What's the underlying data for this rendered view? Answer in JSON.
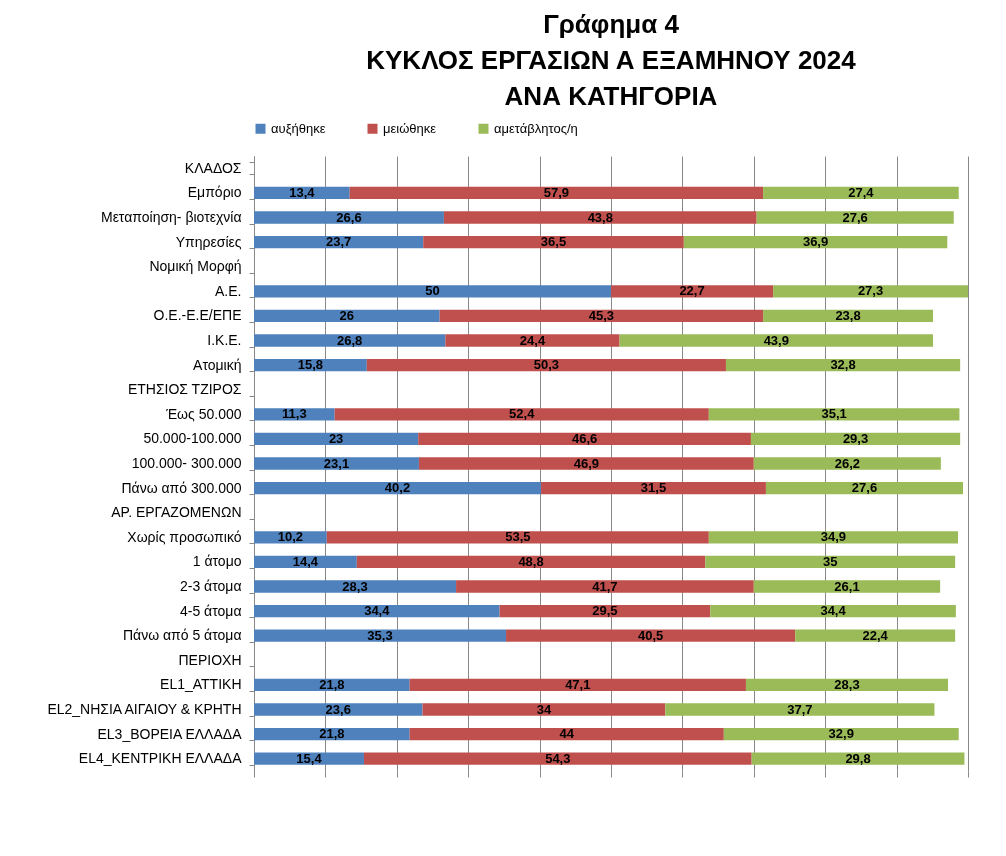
{
  "chart_data": {
    "type": "bar",
    "orientation": "horizontal",
    "stacked": true,
    "title": [
      "Γράφημα 4",
      "ΚΥΚΛΟΣ ΕΡΓΑΣΙΩΝ Α ΕΞΑΜΗΝΟΥ 2024",
      "ΑΝΑ ΚΑΤΗΓΟΡΙΑ"
    ],
    "categories": [
      "ΚΛΑΔΟΣ",
      "Εμπόριο",
      "Μεταποίηση- βιοτεχνία",
      "Υπηρεσίες",
      "Νομική Μορφή",
      "Α.Ε.",
      "Ο.Ε.-Ε.Ε/ΕΠΕ",
      "Ι.Κ.Ε.",
      "Ατομική",
      "ΕΤΗΣΙΟΣ ΤΖΙΡΟΣ",
      "Έως 50.000",
      "50.000-100.000",
      "100.000- 300.000",
      "Πάνω από 300.000",
      "ΑΡ. ΕΡΓΑΖΟΜΕΝΩΝ",
      "Χωρίς προσωπικό",
      "1 άτομο",
      "2-3 άτομα",
      "4-5 άτομα",
      "Πάνω από 5 άτομα",
      "ΠΕΡΙΟΧΗ",
      "EL1_ΑΤΤΙΚΗ",
      "EL2_ΝΗΣΙΑ ΑΙΓΑΙΟΥ & ΚΡΗΤΗ",
      "EL3_ΒΟΡΕΙΑ ΕΛΛΑΔΑ",
      "EL4_ΚΕΝΤΡΙΚΗ ΕΛΛΑΔΑ"
    ],
    "series": [
      {
        "name": "αυξήθηκε",
        "color": "#4f81bd",
        "values": [
          null,
          13.4,
          26.6,
          23.7,
          null,
          50,
          26,
          26.8,
          15.8,
          null,
          11.3,
          23,
          23.1,
          40.2,
          null,
          10.2,
          14.4,
          28.3,
          34.4,
          35.3,
          null,
          21.8,
          23.6,
          21.8,
          15.4
        ],
        "value_labels": [
          null,
          "13,4",
          "26,6",
          "23,7",
          null,
          "50",
          "26",
          "26,8",
          "15,8",
          null,
          "11,3",
          "23",
          "23,1",
          "40,2",
          null,
          "10,2",
          "14,4",
          "28,3",
          "34,4",
          "35,3",
          null,
          "21,8",
          "23,6",
          "21,8",
          "15,4"
        ]
      },
      {
        "name": "μειώθηκε",
        "color": "#c0504d",
        "values": [
          null,
          57.9,
          43.8,
          36.5,
          null,
          22.7,
          45.3,
          24.4,
          50.3,
          null,
          52.4,
          46.6,
          46.9,
          31.5,
          null,
          53.5,
          48.8,
          41.7,
          29.5,
          40.5,
          null,
          47.1,
          34,
          44,
          54.3
        ],
        "value_labels": [
          null,
          "57,9",
          "43,8",
          "36,5",
          null,
          "22,7",
          "45,3",
          "24,4",
          "50,3",
          null,
          "52,4",
          "46,6",
          "46,9",
          "31,5",
          null,
          "53,5",
          "48,8",
          "41,7",
          "29,5",
          "40,5",
          null,
          "47,1",
          "34",
          "44",
          "54,3"
        ]
      },
      {
        "name": "αμετάβλητος/η",
        "color": "#9bbb59",
        "values": [
          null,
          27.4,
          27.6,
          36.9,
          null,
          27.3,
          23.8,
          43.9,
          32.8,
          null,
          35.1,
          29.3,
          26.2,
          27.6,
          null,
          34.9,
          35,
          26.1,
          34.4,
          22.4,
          null,
          28.3,
          37.7,
          32.9,
          29.8
        ],
        "value_labels": [
          null,
          "27,4",
          "27,6",
          "36,9",
          null,
          "27,3",
          "23,8",
          "43,9",
          "32,8",
          null,
          "35,1",
          "29,3",
          "26,2",
          "27,6",
          null,
          "34,9",
          "35",
          "26,1",
          "34,4",
          "22,4",
          null,
          "28,3",
          "37,7",
          "32,9",
          "29,8"
        ]
      }
    ],
    "xlim": [
      0,
      100
    ],
    "xticks": [
      {
        "value": 0,
        "label": null
      },
      {
        "value": 10,
        "label": null
      },
      {
        "value": 20,
        "label": null
      },
      {
        "value": 30,
        "label": null
      },
      {
        "value": 40,
        "label": null
      },
      {
        "value": 50,
        "label": null
      },
      {
        "value": 60,
        "label": null
      },
      {
        "value": 70,
        "label": null
      },
      {
        "value": 80,
        "label": null
      },
      {
        "value": 90,
        "label": null
      },
      {
        "value": 100,
        "label": null
      }
    ],
    "grid": "x",
    "legend": "top",
    "tick_labels": "y"
  }
}
